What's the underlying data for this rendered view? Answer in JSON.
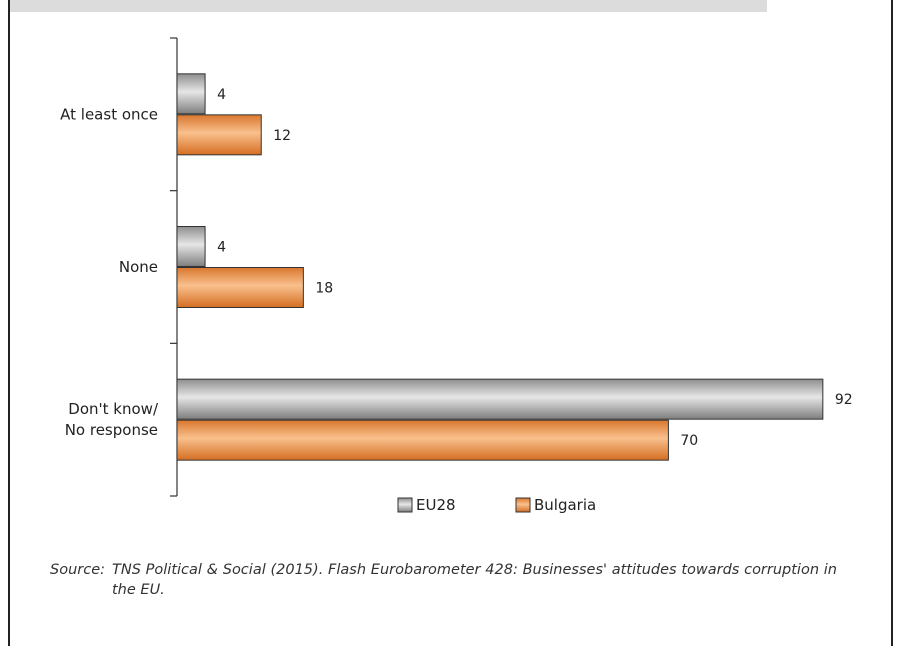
{
  "chart_data": {
    "type": "bar",
    "orientation": "horizontal",
    "categories": [
      "At least once",
      "None",
      "Don't know/\nNo response"
    ],
    "series": [
      {
        "name": "EU28",
        "values": [
          4,
          4,
          92
        ],
        "color": "#a6a6a6"
      },
      {
        "name": "Bulgaria",
        "values": [
          12,
          18,
          70
        ],
        "color": "#ee9147"
      }
    ],
    "xlim": [
      0,
      100
    ],
    "grid": false,
    "legend_position": "bottom"
  },
  "source": {
    "key": "Source:",
    "text": "TNS Political & Social (2015). Flash Eurobarometer 428: Businesses' attitudes towards corruption in the EU."
  }
}
